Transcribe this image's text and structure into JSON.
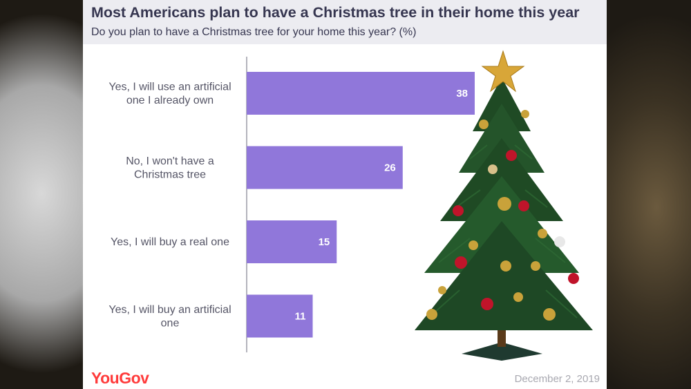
{
  "header": {
    "title": "Most Americans plan to have a Christmas tree in their home this year",
    "subtitle": "Do you plan to have a Christmas tree for your home this year? (%)"
  },
  "footer": {
    "logo": "YouGov",
    "date": "December 2, 2019"
  },
  "colors": {
    "bar": "#9077da",
    "header_bg": "#ececf1",
    "logo": "#ff3b3b"
  },
  "illustration": "christmas-tree",
  "chart_data": {
    "type": "bar",
    "orientation": "horizontal",
    "categories": [
      [
        "Yes, I will use an artificial",
        "one I already own"
      ],
      [
        "No, I won't have a",
        "Christmas tree"
      ],
      [
        "Yes, I will buy a real one"
      ],
      [
        "Yes, I will buy an artificial",
        "one"
      ]
    ],
    "values": [
      38,
      26,
      15,
      11
    ],
    "data_labels": [
      "38",
      "26",
      "15",
      "11"
    ],
    "xlim": [
      0,
      38
    ],
    "grid": false,
    "legend": "none"
  }
}
